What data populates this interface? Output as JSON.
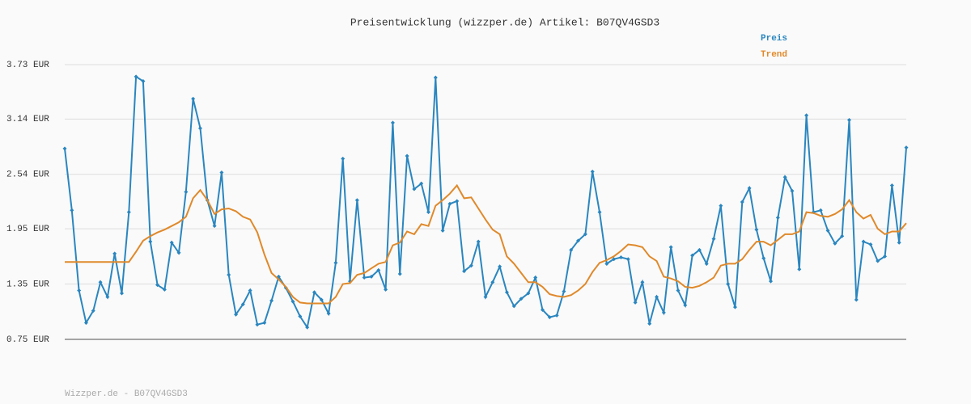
{
  "chart_data": {
    "type": "line",
    "title": "Preisentwicklung (wizzper.de) Artikel: B07QV4GSD3",
    "footer": "Wizzper.de - B07QV4GSD3",
    "ylim": [
      0.75,
      3.73
    ],
    "yticks": [
      {
        "value": 0.75,
        "label": "0.75 EUR"
      },
      {
        "value": 1.35,
        "label": "1.35 EUR"
      },
      {
        "value": 1.95,
        "label": "1.95 EUR"
      },
      {
        "value": 2.54,
        "label": "2.54 EUR"
      },
      {
        "value": 3.14,
        "label": "3.14 EUR"
      },
      {
        "value": 3.73,
        "label": "3.73 EUR"
      }
    ],
    "grid": true,
    "legend": "top-right",
    "series": [
      {
        "name": "Preis",
        "color": "#2a86bf",
        "markers": true,
        "values": [
          2.82,
          2.15,
          1.28,
          0.93,
          1.06,
          1.37,
          1.21,
          1.68,
          1.25,
          2.13,
          3.6,
          3.55,
          1.81,
          1.34,
          1.29,
          1.8,
          1.69,
          2.35,
          3.36,
          3.04,
          2.26,
          1.98,
          2.56,
          1.45,
          1.02,
          1.13,
          1.28,
          0.91,
          0.93,
          1.17,
          1.43,
          1.31,
          1.16,
          1.0,
          0.88,
          1.26,
          1.18,
          1.03,
          1.58,
          2.71,
          1.38,
          2.26,
          1.42,
          1.43,
          1.5,
          1.29,
          3.1,
          1.46,
          2.74,
          2.38,
          2.44,
          2.13,
          3.59,
          1.93,
          2.22,
          2.25,
          1.49,
          1.55,
          1.81,
          1.21,
          1.37,
          1.54,
          1.26,
          1.11,
          1.19,
          1.25,
          1.42,
          1.07,
          0.99,
          1.01,
          1.27,
          1.72,
          1.82,
          1.89,
          2.57,
          2.13,
          1.57,
          1.62,
          1.64,
          1.62,
          1.15,
          1.37,
          0.92,
          1.21,
          1.04,
          1.75,
          1.28,
          1.12,
          1.66,
          1.72,
          1.57,
          1.84,
          2.2,
          1.35,
          1.1,
          2.24,
          2.39,
          1.94,
          1.63,
          1.38,
          2.07,
          2.51,
          2.36,
          1.51,
          3.18,
          2.13,
          2.15,
          1.93,
          1.79,
          1.87,
          3.13,
          1.18,
          1.81,
          1.78,
          1.6,
          1.65,
          2.42,
          1.8,
          2.83
        ]
      },
      {
        "name": "Trend",
        "color": "#e0892a",
        "markers": false,
        "values": [
          1.59,
          1.59,
          1.59,
          1.59,
          1.59,
          1.59,
          1.59,
          1.59,
          1.59,
          1.59,
          1.7,
          1.82,
          1.87,
          1.91,
          1.94,
          1.98,
          2.02,
          2.08,
          2.28,
          2.37,
          2.26,
          2.11,
          2.16,
          2.17,
          2.14,
          2.08,
          2.05,
          1.91,
          1.67,
          1.47,
          1.4,
          1.32,
          1.21,
          1.15,
          1.14,
          1.14,
          1.14,
          1.14,
          1.21,
          1.35,
          1.36,
          1.45,
          1.47,
          1.52,
          1.57,
          1.59,
          1.77,
          1.8,
          1.92,
          1.89,
          2.0,
          1.98,
          2.2,
          2.26,
          2.33,
          2.42,
          2.28,
          2.29,
          2.17,
          2.05,
          1.94,
          1.89,
          1.65,
          1.57,
          1.47,
          1.37,
          1.37,
          1.32,
          1.24,
          1.22,
          1.21,
          1.23,
          1.28,
          1.35,
          1.48,
          1.58,
          1.61,
          1.65,
          1.71,
          1.78,
          1.77,
          1.75,
          1.65,
          1.6,
          1.43,
          1.41,
          1.38,
          1.32,
          1.31,
          1.33,
          1.37,
          1.42,
          1.55,
          1.57,
          1.57,
          1.62,
          1.72,
          1.81,
          1.81,
          1.77,
          1.83,
          1.89,
          1.89,
          1.92,
          2.13,
          2.12,
          2.09,
          2.08,
          2.11,
          2.16,
          2.26,
          2.13,
          2.06,
          2.1,
          1.95,
          1.89,
          1.92,
          1.92,
          2.01
        ]
      }
    ]
  }
}
